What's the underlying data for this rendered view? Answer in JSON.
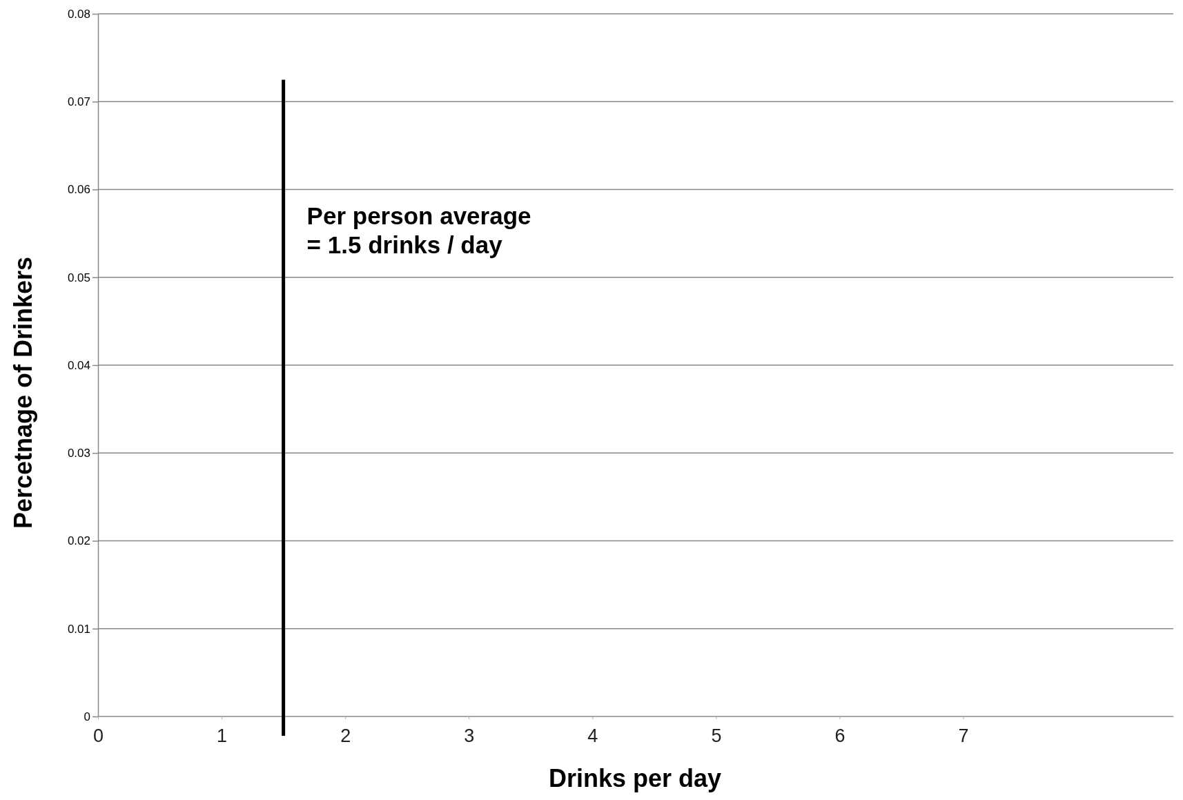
{
  "chart_data": {
    "type": "line",
    "xlabel": "Drinks per day",
    "ylabel": "Percetnage of Drinkers",
    "xlim": [
      0,
      8.7
    ],
    "xticks": [
      0,
      1,
      2,
      3,
      4,
      5,
      6,
      7
    ],
    "ylim": [
      0,
      0.08
    ],
    "yticks": [
      0,
      0.01,
      0.02,
      0.03,
      0.04,
      0.05,
      0.06,
      0.07,
      0.08
    ],
    "grid": "y",
    "ref_lines": [
      {
        "axis": "x",
        "value": 1.5,
        "label": "Per person average\n= 1.5 drinks / day",
        "color": "#000000"
      }
    ]
  }
}
